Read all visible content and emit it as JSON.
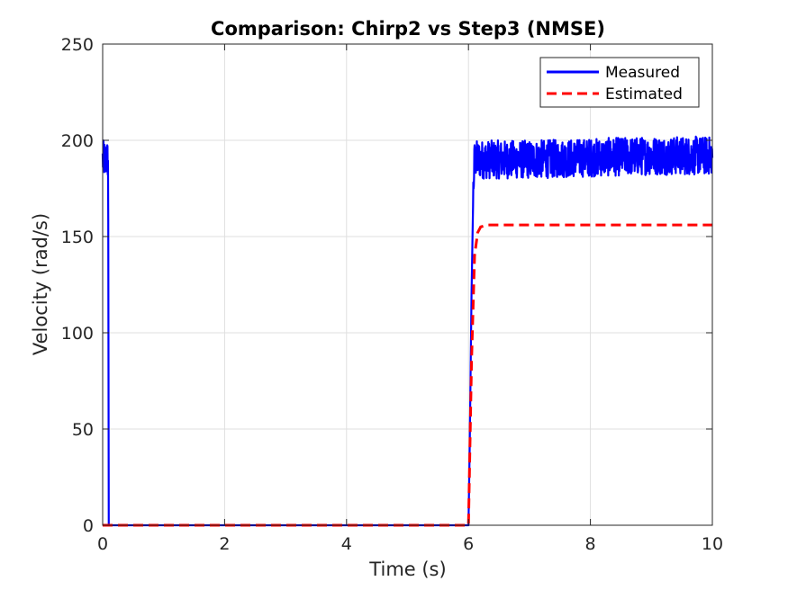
{
  "chart_data": {
    "type": "line",
    "title": "Comparison: Chirp2 vs Step3 (NMSE)",
    "xlabel": "Time (s)",
    "ylabel": "Velocity (rad/s)",
    "xlim": [
      0,
      10
    ],
    "ylim": [
      0,
      250
    ],
    "xticks": [
      0,
      2,
      4,
      6,
      8,
      10
    ],
    "yticks": [
      0,
      50,
      100,
      150,
      200,
      250
    ],
    "grid": true,
    "legend_position": "top-right",
    "series": [
      {
        "name": "Measured",
        "color": "#0000ff",
        "style": "solid",
        "x": [
          0,
          0.09,
          0.1,
          6.0,
          6.02,
          6.05,
          6.08,
          6.1,
          6.3,
          7,
          8,
          9,
          10
        ],
        "y": [
          190,
          190,
          0,
          0,
          40,
          120,
          175,
          190,
          190,
          190,
          191,
          192,
          192
        ],
        "noise_amplitude": 10
      },
      {
        "name": "Estimated",
        "color": "#ff0000",
        "style": "dashed",
        "x": [
          0,
          6.0,
          6.05,
          6.1,
          6.15,
          6.2,
          6.3,
          10
        ],
        "y": [
          0,
          0,
          85,
          140,
          152,
          155,
          156,
          156
        ]
      }
    ]
  }
}
